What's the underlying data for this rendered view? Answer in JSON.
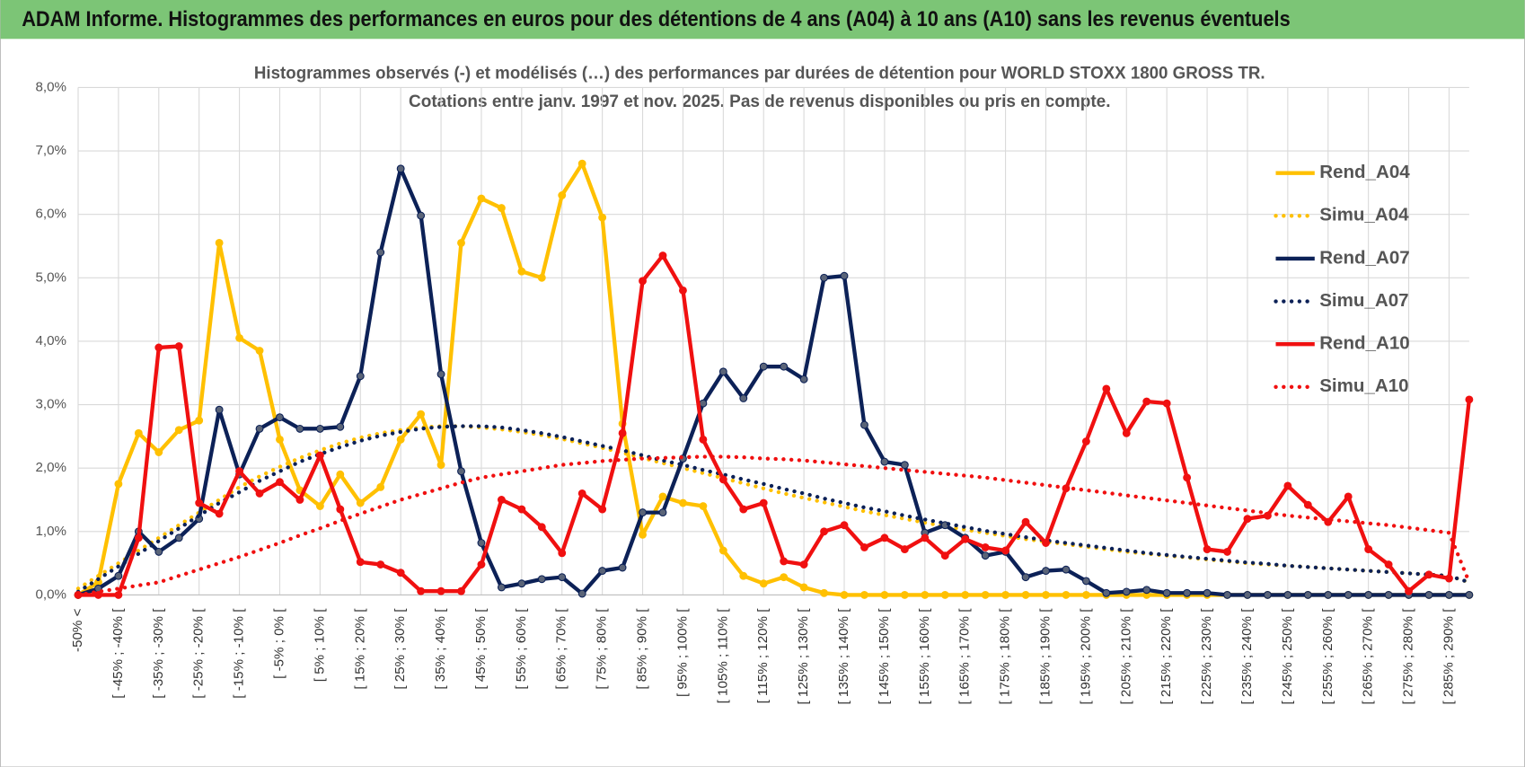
{
  "header": {
    "title": "ADAM Informe. Histogrammes des performances en euros pour des détentions de 4 ans (A04) à 10 ans (A10) sans les revenus éventuels"
  },
  "chart_data": {
    "type": "line",
    "title": "Histogrammes observés (-) et modélisés (…) des performances par durées de détention pour WORLD STOXX 1800 GROSS TR.",
    "subtitle": "Cotations entre janv. 1997 et nov. 2025. Pas de revenus disponibles ou pris en compte.",
    "categories": [
      "-50% <",
      null,
      "[ -45% ; -40% [",
      null,
      "[ -35% ; -30% [",
      null,
      "[ -25% ; -20% [",
      null,
      "[ -15% ; -10% [",
      null,
      "[ -5% ; 0% [",
      null,
      "[ 5% ; 10% [",
      null,
      "[ 15% ; 20% [",
      null,
      "[ 25% ; 30% [",
      null,
      "[ 35% ; 40% [",
      null,
      "[ 45% ; 50% [",
      null,
      "[ 55% ; 60% [",
      null,
      "[ 65% ; 70% [",
      null,
      "[ 75% ; 80% [",
      null,
      "[ 85% ; 90% [",
      null,
      "[ 95% ; 100% [",
      null,
      "[ 105% ; 110% [",
      null,
      "[ 115% ; 120% [",
      null,
      "[ 125% ; 130% [",
      null,
      "[ 135% ; 140% [",
      null,
      "[ 145% ; 150% [",
      null,
      "[ 155% ; 160% [",
      null,
      "[ 165% ; 170% [",
      null,
      "[ 175% ; 180% [",
      null,
      "[ 185% ; 190% [",
      null,
      "[ 195% ; 200% [",
      null,
      "[ 205% ; 210% [",
      null,
      "[ 215% ; 220% [",
      null,
      "[ 225% ; 230% [",
      null,
      "[ 235% ; 240% [",
      null,
      "[ 245% ; 250% [",
      null,
      "[ 255% ; 260% [",
      null,
      "[ 265% ; 270% [",
      null,
      "[ 275% ; 280% [",
      null,
      "[ 285% ; 290% [",
      null
    ],
    "series": [
      {
        "name": "Rend_A04",
        "color": "#ffc000",
        "style": "solid",
        "markers": true,
        "values": [
          0.0,
          0.2,
          1.75,
          2.55,
          2.25,
          2.6,
          2.75,
          5.55,
          4.05,
          3.85,
          2.45,
          1.65,
          1.4,
          1.9,
          1.45,
          1.7,
          2.45,
          2.85,
          2.05,
          5.55,
          6.25,
          6.1,
          5.1,
          5.0,
          6.3,
          6.8,
          5.95,
          2.7,
          0.95,
          1.55,
          1.45,
          1.4,
          0.7,
          0.3,
          0.18,
          0.28,
          0.12,
          0.03,
          0,
          0,
          0,
          0,
          0,
          0,
          0,
          0,
          0,
          0,
          0,
          0,
          0,
          0,
          0,
          0,
          0,
          0,
          0,
          0,
          0,
          0,
          0,
          0,
          0,
          0,
          0,
          0,
          0,
          0,
          0,
          0
        ]
      },
      {
        "name": "Simu_A04",
        "color": "#ffc000",
        "style": "dotted",
        "markers": false,
        "values": [
          0.1,
          0.3,
          0.5,
          0.7,
          0.9,
          1.1,
          1.3,
          1.5,
          1.7,
          1.87,
          2.02,
          2.16,
          2.28,
          2.39,
          2.48,
          2.55,
          2.6,
          2.64,
          2.66,
          2.66,
          2.64,
          2.61,
          2.57,
          2.52,
          2.46,
          2.39,
          2.32,
          2.24,
          2.16,
          2.08,
          2.0,
          1.92,
          1.84,
          1.76,
          1.68,
          1.6,
          1.53,
          1.46,
          1.39,
          1.32,
          1.26,
          1.2,
          1.14,
          1.08,
          1.03,
          0.98,
          0.93,
          0.88,
          0.84,
          0.8,
          0.76,
          0.72,
          0.68,
          0.65,
          0.62,
          0.59,
          0.56,
          0.53,
          0.5,
          0.48,
          0.46,
          0.44,
          0.42,
          0.4,
          0.38,
          0.36,
          0.34,
          0.32,
          0.3,
          0.2
        ]
      },
      {
        "name": "Rend_A07",
        "color": "#0c2157",
        "style": "solid",
        "markers": true,
        "values": [
          0.0,
          0.1,
          0.3,
          1.0,
          0.68,
          0.9,
          1.2,
          2.92,
          1.9,
          2.62,
          2.8,
          2.62,
          2.62,
          2.65,
          3.45,
          5.4,
          6.72,
          5.98,
          3.48,
          1.95,
          0.82,
          0.12,
          0.18,
          0.25,
          0.28,
          0.02,
          0.38,
          0.43,
          1.3,
          1.3,
          2.15,
          3.02,
          3.52,
          3.1,
          3.6,
          3.6,
          3.4,
          5.0,
          5.03,
          2.68,
          2.1,
          2.05,
          0.98,
          1.1,
          0.9,
          0.62,
          0.68,
          0.28,
          0.38,
          0.4,
          0.22,
          0.03,
          0.05,
          0.08,
          0.03,
          0.03,
          0.03,
          0,
          0,
          0,
          0,
          0,
          0,
          0,
          0,
          0,
          0,
          0,
          0,
          0
        ]
      },
      {
        "name": "Simu_A07",
        "color": "#0c2157",
        "style": "dotted",
        "markers": false,
        "values": [
          0.05,
          0.25,
          0.45,
          0.65,
          0.85,
          1.05,
          1.25,
          1.45,
          1.62,
          1.8,
          1.95,
          2.1,
          2.22,
          2.33,
          2.43,
          2.51,
          2.57,
          2.62,
          2.65,
          2.66,
          2.66,
          2.64,
          2.6,
          2.55,
          2.49,
          2.42,
          2.35,
          2.28,
          2.2,
          2.12,
          2.05,
          1.97,
          1.9,
          1.82,
          1.75,
          1.67,
          1.6,
          1.52,
          1.45,
          1.38,
          1.32,
          1.25,
          1.19,
          1.13,
          1.07,
          1.01,
          0.96,
          0.91,
          0.86,
          0.82,
          0.78,
          0.74,
          0.7,
          0.66,
          0.63,
          0.6,
          0.57,
          0.54,
          0.51,
          0.49,
          0.46,
          0.44,
          0.42,
          0.4,
          0.38,
          0.36,
          0.34,
          0.32,
          0.3,
          0.2
        ]
      },
      {
        "name": "Rend_A10",
        "color": "#f01010",
        "style": "solid",
        "markers": true,
        "values": [
          0.0,
          0.0,
          0.0,
          0.9,
          3.9,
          3.92,
          1.45,
          1.28,
          1.95,
          1.6,
          1.78,
          1.5,
          2.2,
          1.35,
          0.52,
          0.48,
          0.35,
          0.06,
          0.06,
          0.06,
          0.48,
          1.5,
          1.35,
          1.07,
          0.66,
          1.6,
          1.35,
          2.55,
          4.95,
          5.35,
          4.8,
          2.45,
          1.82,
          1.35,
          1.45,
          0.53,
          0.48,
          1.0,
          1.1,
          0.75,
          0.9,
          0.72,
          0.9,
          0.62,
          0.88,
          0.75,
          0.7,
          1.15,
          0.82,
          1.68,
          2.42,
          3.25,
          2.55,
          3.05,
          3.02,
          1.85,
          0.72,
          0.68,
          1.2,
          1.25,
          1.72,
          1.42,
          1.15,
          1.55,
          0.72,
          0.48,
          0.06,
          0.32,
          0.26,
          3.08
        ]
      },
      {
        "name": "Simu_A10",
        "color": "#f01010",
        "style": "dotted",
        "markers": false,
        "values": [
          0.0,
          0.05,
          0.1,
          0.15,
          0.2,
          0.3,
          0.4,
          0.5,
          0.6,
          0.71,
          0.82,
          0.94,
          1.05,
          1.17,
          1.28,
          1.39,
          1.5,
          1.59,
          1.68,
          1.77,
          1.85,
          1.9,
          1.95,
          2.0,
          2.05,
          2.08,
          2.11,
          2.13,
          2.15,
          2.16,
          2.17,
          2.18,
          2.18,
          2.17,
          2.15,
          2.14,
          2.12,
          2.09,
          2.06,
          2.03,
          2.0,
          1.97,
          1.94,
          1.91,
          1.88,
          1.85,
          1.81,
          1.77,
          1.73,
          1.69,
          1.65,
          1.61,
          1.57,
          1.53,
          1.49,
          1.45,
          1.41,
          1.37,
          1.33,
          1.29,
          1.25,
          1.22,
          1.19,
          1.16,
          1.13,
          1.1,
          1.06,
          1.02,
          0.98,
          0.2
        ]
      }
    ],
    "ylim": [
      0,
      8
    ],
    "yticks": [
      {
        "value": 0,
        "label": "0,0%"
      },
      {
        "value": 1,
        "label": "1,0%"
      },
      {
        "value": 2,
        "label": "2,0%"
      },
      {
        "value": 3,
        "label": "3,0%"
      },
      {
        "value": 4,
        "label": "4,0%"
      },
      {
        "value": 5,
        "label": "5,0%"
      },
      {
        "value": 6,
        "label": "6,0%"
      },
      {
        "value": 7,
        "label": "7,0%"
      },
      {
        "value": 8,
        "label": "8,0%"
      }
    ],
    "grid": true,
    "legend": "right"
  }
}
